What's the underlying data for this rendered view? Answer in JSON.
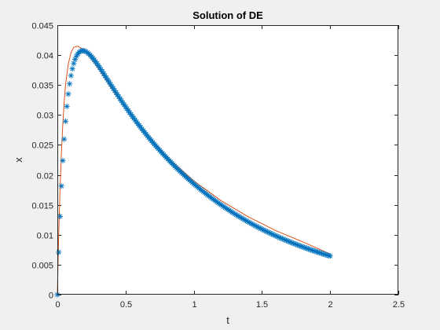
{
  "chart_data": {
    "type": "line",
    "title": "Solution of DE",
    "xlabel": "t",
    "ylabel": "x",
    "xlim": [
      0,
      2.5
    ],
    "ylim": [
      0,
      0.045
    ],
    "xticks": [
      "0",
      "0.5",
      "1",
      "1.5",
      "2",
      "2.5"
    ],
    "yticks": [
      "0",
      "0.005",
      "0.01",
      "0.015",
      "0.02",
      "0.025",
      "0.03",
      "0.035",
      "0.04",
      "0.045"
    ],
    "grid": false,
    "legend": "none",
    "series": [
      {
        "style": "marker-only",
        "marker": "asterisk",
        "color": "#0072BD",
        "x_start": 0,
        "x_end": 2,
        "x_step": 0.01,
        "peak": {
          "x": 0.15,
          "y": 0.0415
        },
        "end": {
          "x": 2,
          "y": 0.0068
        }
      },
      {
        "style": "line",
        "color": "#D95319",
        "x": [
          0,
          0.01,
          0.02,
          0.03,
          0.04,
          0.05,
          0.06,
          0.08,
          0.1,
          0.12,
          0.15,
          0.2,
          0.3,
          0.4,
          0.5,
          0.6,
          0.7,
          0.8,
          0.9,
          1.0,
          1.2,
          1.4,
          1.6,
          1.8,
          2.0
        ],
        "y": [
          0,
          0.0101,
          0.0178,
          0.0238,
          0.0285,
          0.0322,
          0.035,
          0.0385,
          0.0404,
          0.0413,
          0.0415,
          0.0408,
          0.0378,
          0.0344,
          0.0312,
          0.0282,
          0.0255,
          0.0231,
          0.021,
          0.019,
          0.0157,
          0.013,
          0.0107,
          0.0088,
          0.0068
        ]
      }
    ]
  }
}
